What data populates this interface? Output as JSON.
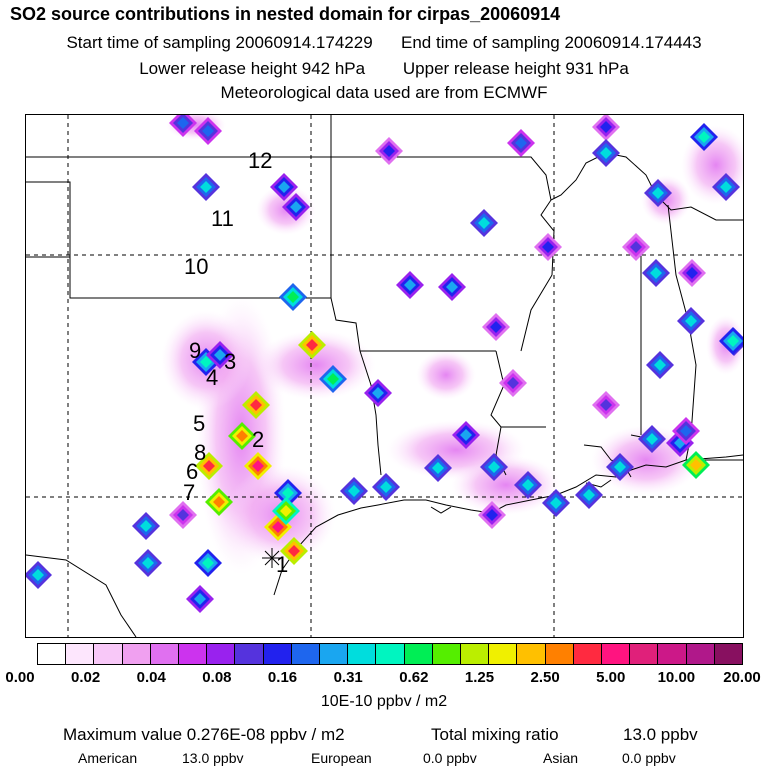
{
  "header": {
    "title": "SO2 source contributions in nested domain for cirpas_20060914",
    "start_label": "Start time of sampling 20060914.174229",
    "end_label": "End time of sampling 20060914.174443",
    "lower_label": "Lower release height  942 hPa",
    "upper_label": "Upper release height  931 hPa",
    "met_label": "Meteorological data used are from ECMWF"
  },
  "map": {
    "labels": [
      "12",
      "11",
      "10",
      "9",
      "3",
      "4",
      "5",
      "2",
      "8",
      "6",
      "7",
      "1"
    ]
  },
  "colorbar": {
    "colors": [
      "#ffffff",
      "#fde6fd",
      "#f8c8f8",
      "#f0a0f0",
      "#e070f0",
      "#cc33ee",
      "#9922ee",
      "#5533dd",
      "#2222ee",
      "#1e66ee",
      "#1aa6f0",
      "#00dddd",
      "#00f5c0",
      "#00ee55",
      "#55ee00",
      "#bbee00",
      "#f0f000",
      "#ffc000",
      "#ff8000",
      "#ff2a40",
      "#ff1480",
      "#e0207a",
      "#cc1888",
      "#b0188a",
      "#881060"
    ],
    "tick_labels": [
      "0.00",
      "0.02",
      "0.04",
      "0.08",
      "0.16",
      "0.31",
      "0.62",
      "1.25",
      "2.50",
      "5.00",
      "10.00",
      "20.00"
    ],
    "units": "10E-10 ppbv / m2"
  },
  "footer": {
    "max_value": "Maximum value  0.276E-08 ppbv / m2",
    "total_mixing": "Total mixing ratio",
    "total_value": "13.0 ppbv",
    "american_label": "American",
    "american_value": "13.0 ppbv",
    "european_label": "European",
    "european_value": "0.0 ppbv",
    "asian_label": "Asian",
    "asian_value": "0.0 ppbv"
  }
}
